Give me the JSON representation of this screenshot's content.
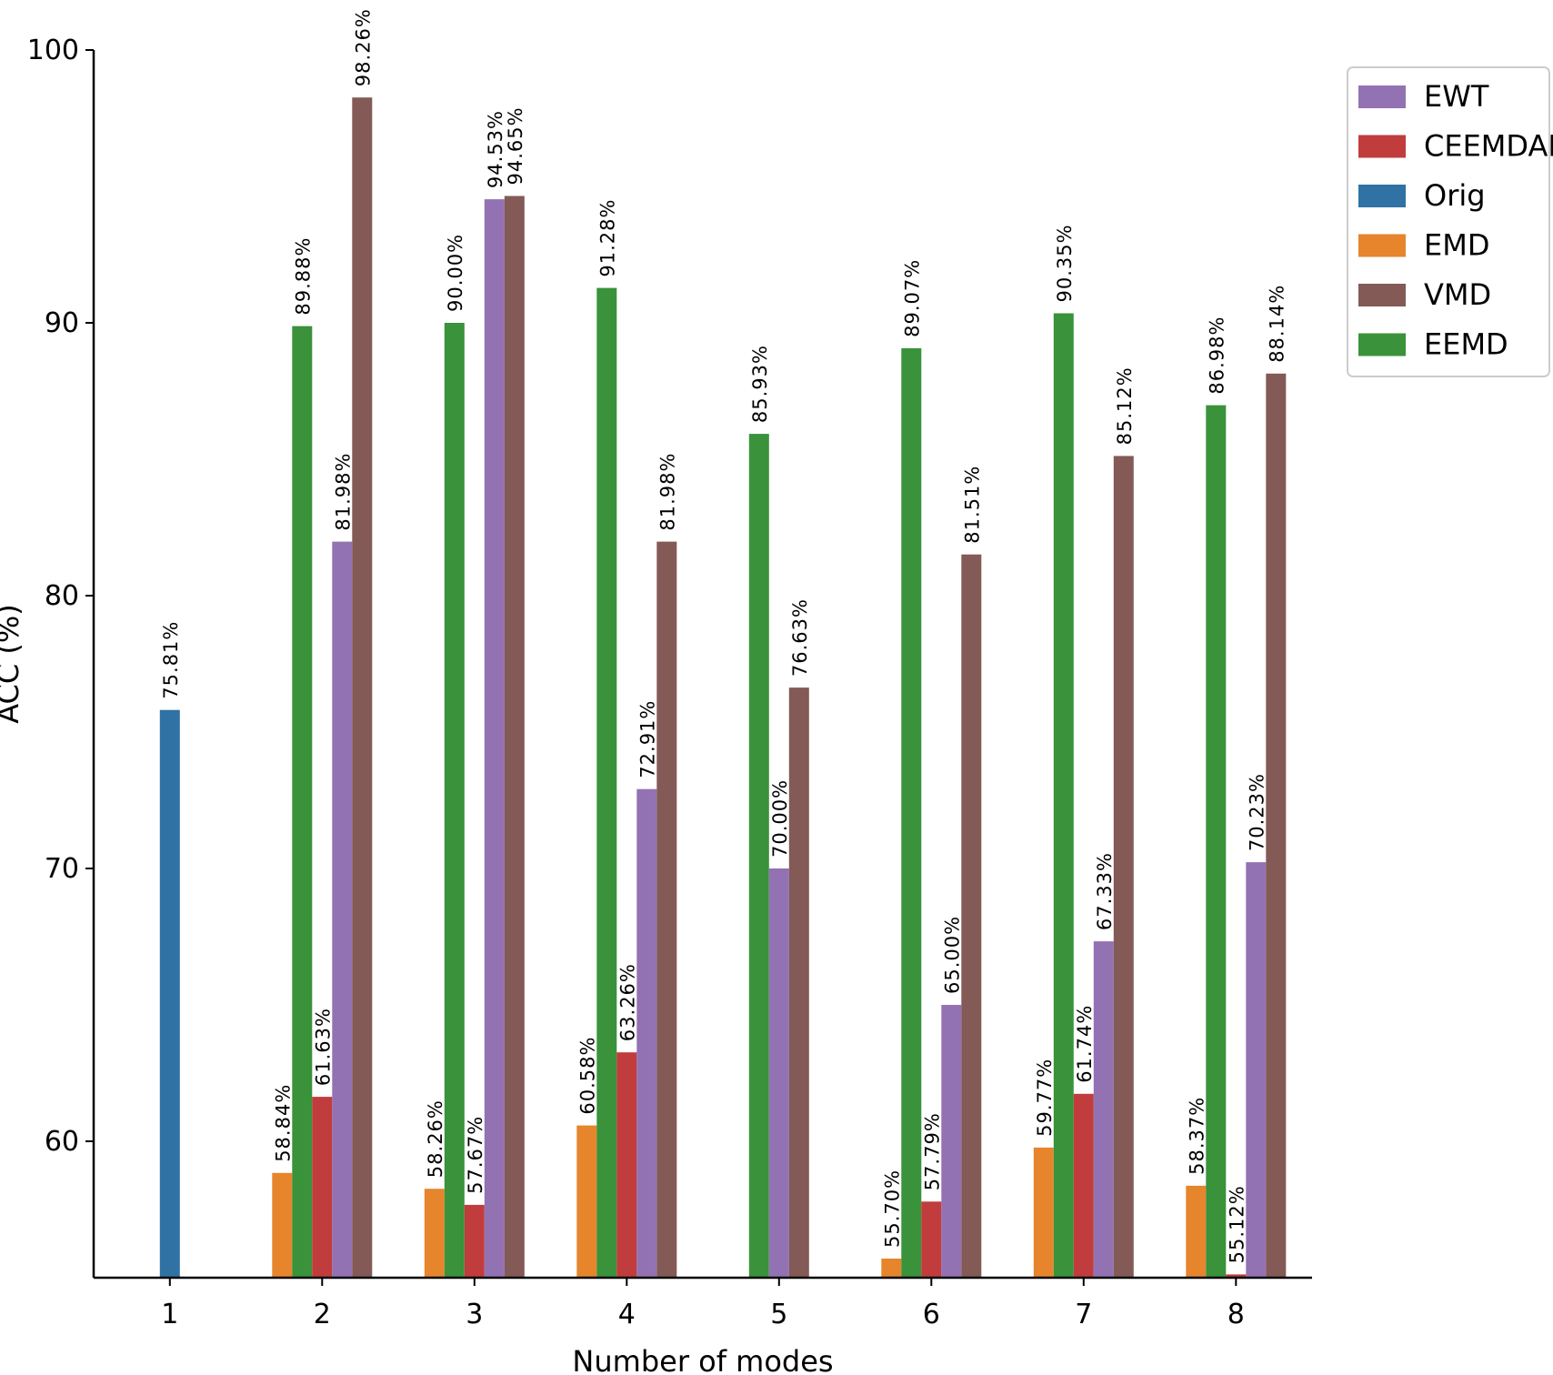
{
  "chart_data": {
    "type": "bar",
    "title": "",
    "xlabel": "Number of modes",
    "ylabel": "ACC (%)",
    "categories": [
      "1",
      "2",
      "3",
      "4",
      "5",
      "6",
      "7",
      "8"
    ],
    "ylim": [
      55,
      100
    ],
    "yticks": [
      "60",
      "70",
      "80",
      "90",
      "100"
    ],
    "grid": false,
    "legend_position": "top-right",
    "series": [
      {
        "name": "EWT",
        "color": "#9372b3",
        "values": [
          null,
          81.98,
          94.53,
          72.91,
          70.0,
          65.0,
          67.33,
          70.23
        ],
        "labels": [
          null,
          "81.98%",
          "94.53%",
          "72.91%",
          "70.00%",
          "65.00%",
          "67.33%",
          "70.23%"
        ]
      },
      {
        "name": "CEEMDAN",
        "color": "#c13c3c",
        "values": [
          null,
          61.63,
          57.67,
          63.26,
          null,
          57.79,
          61.74,
          55.12
        ],
        "labels": [
          null,
          "61.63%",
          "57.67%",
          "63.26%",
          null,
          "57.79%",
          "61.74%",
          "55.12%"
        ]
      },
      {
        "name": "Orig",
        "color": "#2f72a3",
        "values": [
          75.81,
          null,
          null,
          null,
          null,
          null,
          null,
          null
        ],
        "labels": [
          "75.81%",
          null,
          null,
          null,
          null,
          null,
          null,
          null
        ]
      },
      {
        "name": "EMD",
        "color": "#e6852c",
        "values": [
          null,
          58.84,
          58.26,
          60.58,
          null,
          55.7,
          59.77,
          58.37
        ],
        "labels": [
          null,
          "58.84%",
          "58.26%",
          "60.58%",
          null,
          "55.70%",
          "59.77%",
          "58.37%"
        ]
      },
      {
        "name": "VMD",
        "color": "#835a55",
        "values": [
          null,
          98.26,
          94.65,
          81.98,
          76.63,
          81.51,
          85.12,
          88.14
        ],
        "labels": [
          null,
          "98.26%",
          "94.65%",
          "81.98%",
          "76.63%",
          "81.51%",
          "85.12%",
          "88.14%"
        ]
      },
      {
        "name": "EEMD",
        "color": "#3a923a",
        "values": [
          null,
          89.88,
          90.0,
          91.28,
          85.93,
          89.07,
          90.35,
          86.98
        ],
        "labels": [
          null,
          "89.88%",
          "90.00%",
          "91.28%",
          "85.93%",
          "89.07%",
          "90.35%",
          "86.98%"
        ]
      }
    ]
  }
}
